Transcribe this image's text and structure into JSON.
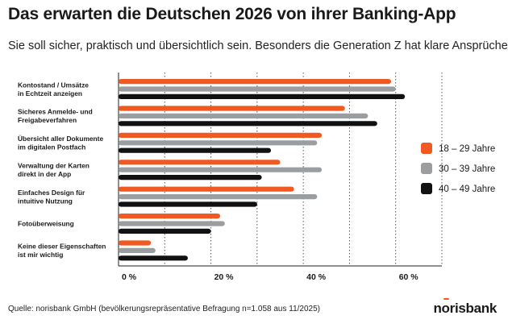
{
  "header": {
    "title": "Das erwarten die Deutschen 2026 von ihrer Banking-App",
    "subtitle": "Sie soll sicher, praktisch und übersichtlich sein. Besonders die Generation Z hat klare Ansprüche."
  },
  "footer": {
    "source": "Quelle: norisbank GmbH (bevölkerungsrepräsentative Befragung n=1.058 aus 11/2025)",
    "logo_text": "norisbank"
  },
  "chart_data": {
    "type": "bar",
    "orientation": "horizontal",
    "categories": [
      [
        "Kontostand / Umsätze",
        "in Echtzeit anzeigen"
      ],
      [
        "Sicheres Anmelde- und",
        "Freigabeverfahren"
      ],
      [
        "Übersicht aller Dokumente",
        "im digitalen Postfach"
      ],
      [
        "Verwaltung der Karten",
        "direkt in der App"
      ],
      [
        "Einfaches Design für",
        "intuitive Nutzung"
      ],
      [
        "Fotoüberweisung"
      ],
      [
        "Keine dieser Eigenschaften",
        "ist mir wichtig"
      ]
    ],
    "series": [
      {
        "name": "18 – 29 Jahre",
        "color": "#f05a22",
        "values": [
          59,
          49,
          44,
          35,
          38,
          22,
          7
        ]
      },
      {
        "name": "30 – 39 Jahre",
        "color": "#9a9ea1",
        "values": [
          60,
          54,
          43,
          44,
          43,
          23,
          8
        ]
      },
      {
        "name": "40 – 49 Jahre",
        "color": "#111111",
        "values": [
          62,
          56,
          33,
          31,
          30,
          20,
          15
        ]
      }
    ],
    "xlim": [
      0,
      70
    ],
    "xticks": [
      0,
      20,
      40,
      60
    ],
    "xtick_labels": [
      "0 %",
      "20 %",
      "40 %",
      "60 %"
    ],
    "grid": true,
    "legend_position": "right"
  }
}
